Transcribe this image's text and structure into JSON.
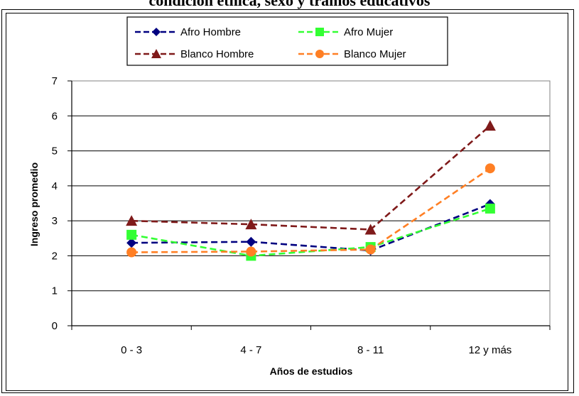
{
  "chart_data": {
    "type": "line",
    "title": "condición étnica, sexo y tramos educativos",
    "xlabel": "Años de estudios",
    "ylabel": "Ingreso promedio",
    "ylim": [
      0,
      7
    ],
    "yticks": [
      0,
      1,
      2,
      3,
      4,
      5,
      6,
      7
    ],
    "categories": [
      "0 - 3",
      "4 - 7",
      "8 - 11",
      "12 y más"
    ],
    "grid": "horizontal",
    "legend_position": "top",
    "series": [
      {
        "name": "Afro Hombre",
        "values": [
          2.37,
          2.4,
          2.15,
          3.48
        ],
        "color": "#000080",
        "marker": "diamond",
        "line": "dashed"
      },
      {
        "name": "Afro Mujer",
        "values": [
          2.6,
          2.0,
          2.25,
          3.35
        ],
        "color": "#33ff33",
        "marker": "square",
        "line": "dashed"
      },
      {
        "name": "Blanco Hombre",
        "values": [
          3.0,
          2.9,
          2.75,
          5.72
        ],
        "color": "#7f1a1a",
        "marker": "triangle",
        "line": "dashed"
      },
      {
        "name": "Blanco Mujer",
        "values": [
          2.1,
          2.12,
          2.18,
          4.5
        ],
        "color": "#ff7f24",
        "marker": "circle",
        "line": "dashed"
      }
    ]
  }
}
